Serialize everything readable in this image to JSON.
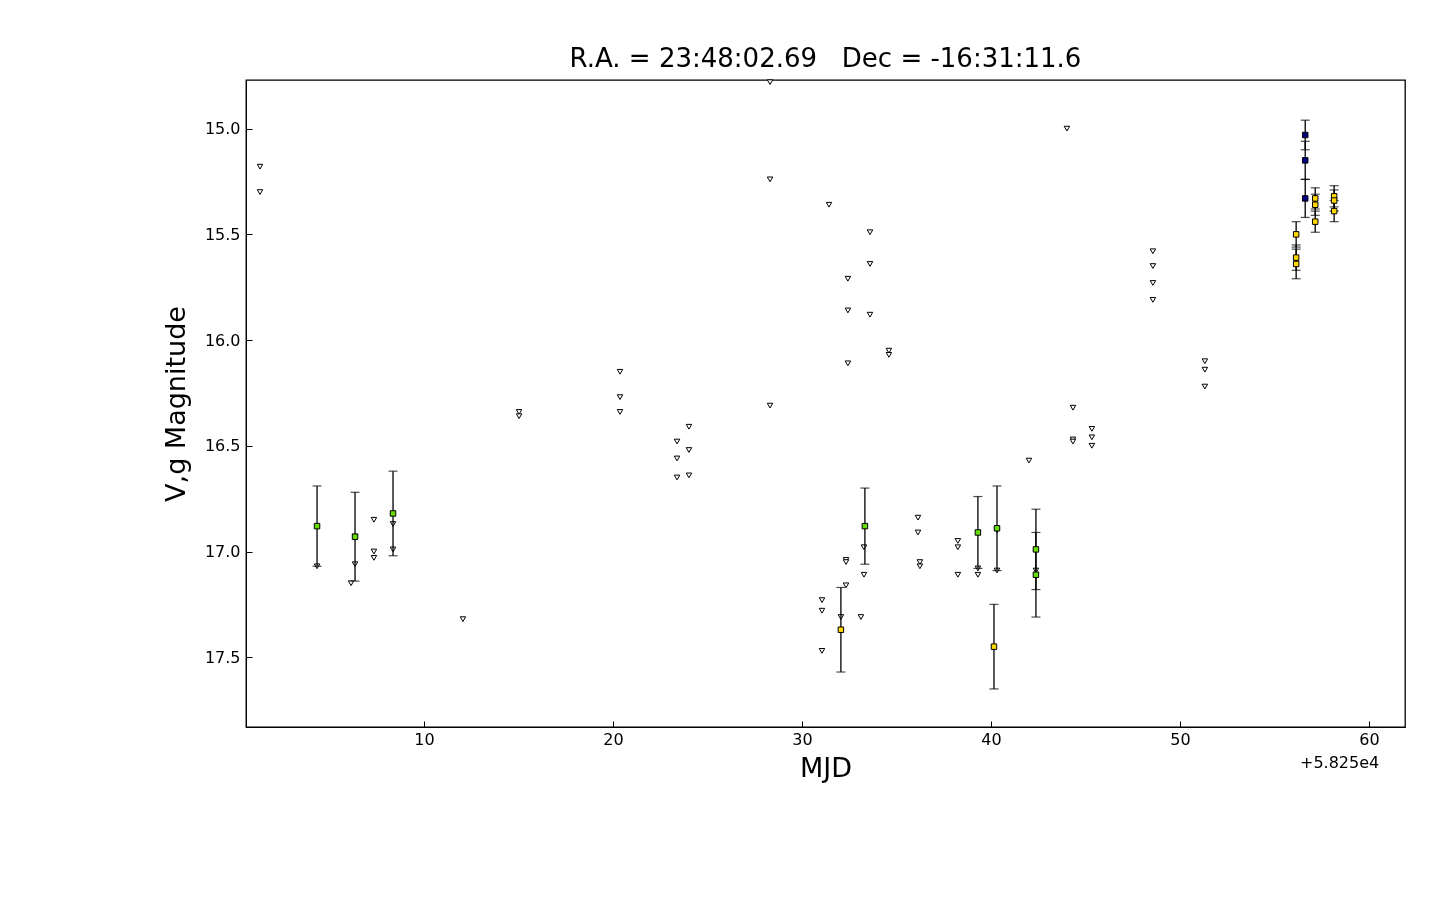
{
  "chart_data": {
    "type": "scatter",
    "title": "R.A. = 23:48:02.69   Dec = -16:31:11.6",
    "xlabel": "MJD",
    "ylabel": "V,g Magnitude",
    "annotations": [
      "+5.825e4"
    ],
    "xlim": [
      0.58,
      61.91
    ],
    "xticks": [
      10,
      20,
      30,
      40,
      50,
      60
    ],
    "ylim": [
      17.83,
      14.77
    ],
    "yticks": [
      {
        "value": 15,
        "label": "15.0"
      },
      {
        "value": 15.5,
        "label": "15.5"
      },
      {
        "value": 16,
        "label": "16.0"
      },
      {
        "value": 16.5,
        "label": "16.5"
      },
      {
        "value": 17,
        "label": "17.0"
      },
      {
        "value": 17.5,
        "label": "17.5"
      }
    ],
    "grid": false,
    "series": [
      {
        "color": "#ffffff",
        "marker": "triangle",
        "x": [
          1.32,
          1.32,
          4.34,
          6.14,
          6.35,
          6.35,
          7.35,
          7.35,
          7.35,
          8.36,
          8.36,
          12.06,
          15.03,
          15.03,
          20.37,
          20.37,
          20.37,
          23.39,
          23.39,
          23.39,
          24.02,
          24.02,
          24.02,
          28.31,
          28.31,
          28.31,
          31.43,
          31.06,
          31.06,
          31.06,
          32.06,
          32.33,
          32.33,
          32.33,
          32.43,
          32.43,
          32.43,
          33.12,
          33.28,
          33.28,
          33.6,
          33.6,
          33.6,
          34.6,
          34.6,
          36.14,
          36.14,
          36.24,
          36.24,
          38.25,
          38.25,
          38.25,
          39.31,
          39.31,
          40.32,
          40.32,
          42.01,
          42.38,
          44.02,
          44.34,
          44.34,
          44.34,
          45.34,
          45.34,
          45.34,
          48.57,
          48.57,
          48.57,
          48.57,
          51.32,
          51.32,
          51.32
        ],
        "values": [
          15.18,
          15.3,
          17.07,
          17.15,
          16.93,
          17.06,
          16.85,
          17.0,
          17.03,
          16.87,
          16.99,
          17.32,
          16.34,
          16.36,
          16.15,
          16.27,
          16.34,
          16.48,
          16.56,
          16.65,
          16.41,
          16.52,
          16.64,
          14.78,
          15.24,
          16.31,
          15.36,
          17.23,
          17.28,
          17.47,
          17.31,
          17.04,
          17.05,
          17.16,
          15.71,
          15.86,
          16.11,
          17.31,
          16.98,
          17.11,
          15.49,
          15.64,
          15.88,
          16.05,
          16.07,
          16.84,
          16.91,
          17.05,
          17.07,
          16.95,
          16.98,
          17.11,
          17.08,
          17.11,
          16.9,
          17.09,
          16.57,
          17.09,
          15.0,
          16.32,
          16.47,
          16.48,
          16.42,
          16.46,
          16.5,
          15.58,
          15.65,
          15.73,
          15.81,
          16.1,
          16.14,
          16.22
        ]
      },
      {
        "color": "#66dd00",
        "marker": "square",
        "x": [
          4.34,
          6.35,
          8.36,
          33.33,
          39.31,
          40.32,
          42.38,
          42.38
        ],
        "values": [
          16.88,
          16.93,
          16.82,
          16.88,
          16.91,
          16.89,
          16.99,
          17.11
        ],
        "errors": [
          0.19,
          0.21,
          0.2,
          0.18,
          0.17,
          0.2,
          0.19,
          0.2
        ]
      },
      {
        "color": "#ffd700",
        "marker": "square",
        "x": [
          32.06,
          40.16,
          56.15,
          56.15,
          56.15,
          57.16,
          57.16,
          57.16,
          58.16,
          58.16,
          58.16
        ],
        "values": [
          17.37,
          17.45,
          15.5,
          15.61,
          15.64,
          15.33,
          15.36,
          15.44,
          15.32,
          15.34,
          15.39
        ],
        "errors": [
          0.2,
          0.2,
          0.06,
          0.06,
          0.07,
          0.05,
          0.05,
          0.05,
          0.05,
          0.05,
          0.05
        ]
      },
      {
        "color": "#000080",
        "marker": "square",
        "x": [
          56.63,
          56.63,
          56.63
        ],
        "values": [
          15.03,
          15.15,
          15.33
        ],
        "errors": [
          0.07,
          0.09,
          0.09
        ]
      }
    ]
  }
}
